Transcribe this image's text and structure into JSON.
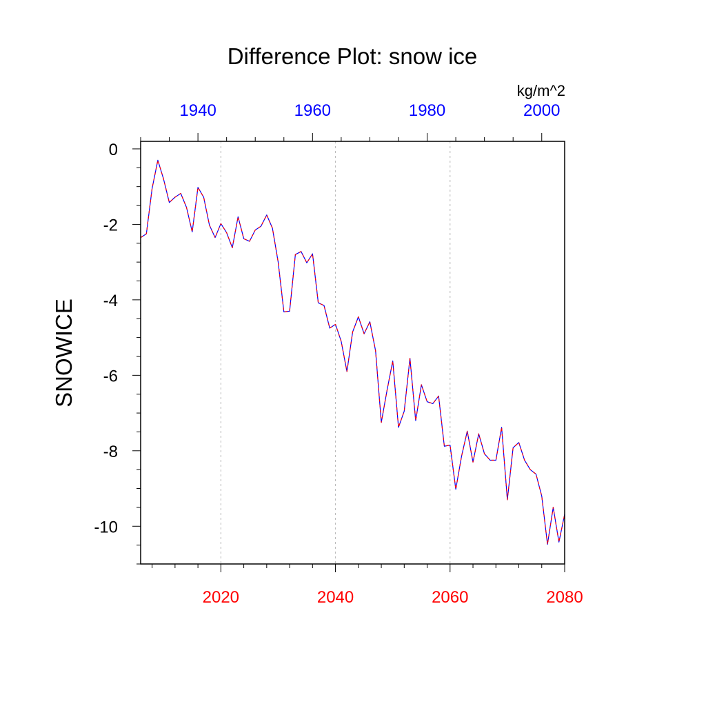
{
  "chart_data": {
    "type": "line",
    "title": "Difference Plot: snow ice",
    "units": "kg/m^2",
    "ylabel": "SNOWICE",
    "xlabel": "",
    "ylim": [
      -11,
      0.2
    ],
    "yticks": [
      0,
      -2,
      -4,
      -6,
      -8,
      -10
    ],
    "y_minor_step": 0.5,
    "x_bottom": {
      "range": [
        2006,
        2080
      ],
      "ticks": [
        2020,
        2040,
        2060,
        2080
      ],
      "color": "#ff0000",
      "grid": "dashed-gray",
      "minor_step": 4
    },
    "x_top": {
      "range": [
        1930,
        2004
      ],
      "ticks": [
        1940,
        1960,
        1980,
        2000
      ],
      "color": "#0000ff",
      "minor_step": 5
    },
    "series": [
      {
        "color_primary": "#ff0000",
        "color_secondary": "#0000ff",
        "style": "dashed-overlay",
        "x": [
          2006,
          2007,
          2008,
          2009,
          2010,
          2011,
          2012,
          2013,
          2014,
          2015,
          2016,
          2017,
          2018,
          2019,
          2020,
          2021,
          2022,
          2023,
          2024,
          2025,
          2026,
          2027,
          2028,
          2029,
          2030,
          2031,
          2032,
          2033,
          2034,
          2035,
          2036,
          2037,
          2038,
          2039,
          2040,
          2041,
          2042,
          2043,
          2044,
          2045,
          2046,
          2047,
          2048,
          2049,
          2050,
          2051,
          2052,
          2053,
          2054,
          2055,
          2056,
          2057,
          2058,
          2059,
          2060,
          2061,
          2062,
          2063,
          2064,
          2065,
          2066,
          2067,
          2068,
          2069,
          2070,
          2071,
          2072,
          2073,
          2074,
          2075,
          2076,
          2077,
          2078,
          2079,
          2080
        ],
        "values": [
          -2.35,
          -2.25,
          -1.05,
          -0.3,
          -0.8,
          -1.42,
          -1.28,
          -1.18,
          -1.55,
          -2.2,
          -1.02,
          -1.28,
          -2.02,
          -2.35,
          -1.98,
          -2.22,
          -2.62,
          -1.8,
          -2.38,
          -2.45,
          -2.15,
          -2.05,
          -1.75,
          -2.1,
          -3.0,
          -4.32,
          -4.3,
          -2.8,
          -2.72,
          -3.02,
          -2.78,
          -4.08,
          -4.15,
          -4.75,
          -4.65,
          -5.1,
          -5.9,
          -4.85,
          -4.45,
          -4.9,
          -4.58,
          -5.35,
          -7.25,
          -6.4,
          -5.62,
          -7.38,
          -6.95,
          -5.55,
          -7.2,
          -6.25,
          -6.7,
          -6.75,
          -6.55,
          -7.88,
          -7.85,
          -9.02,
          -8.15,
          -7.48,
          -8.3,
          -7.55,
          -8.08,
          -8.25,
          -8.25,
          -7.38,
          -9.3,
          -7.92,
          -7.78,
          -8.25,
          -8.5,
          -8.62,
          -9.2,
          -10.48,
          -9.5,
          -10.42,
          -9.68
        ]
      }
    ],
    "grid": "vertical-dashed-at-bottom-ticks"
  }
}
